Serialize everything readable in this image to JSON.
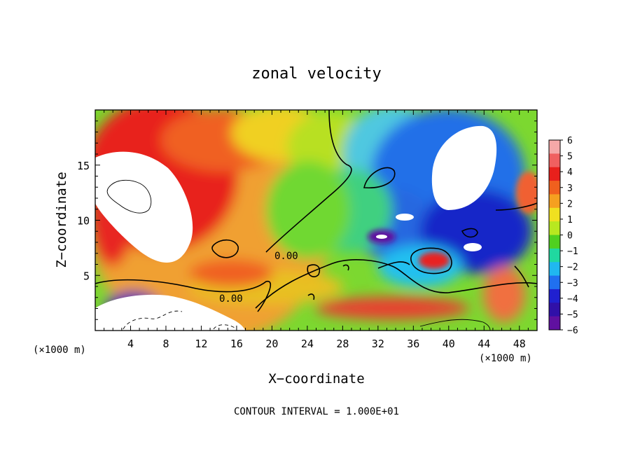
{
  "chart_data": {
    "type": "heatmap",
    "title": "zonal velocity",
    "xlabel": "X−coordinate",
    "ylabel": "Z−coordinate",
    "x_unit_left": "(×1000 m)",
    "x_unit_right": "(×1000 m)",
    "xlim": [
      0,
      50
    ],
    "ylim": [
      0,
      20
    ],
    "x_ticks": [
      4,
      8,
      12,
      16,
      20,
      24,
      28,
      32,
      36,
      40,
      44,
      48
    ],
    "y_ticks": [
      5,
      10,
      15
    ],
    "colorbar": {
      "ticks": [
        "6",
        "5",
        "4",
        "3",
        "2",
        "1",
        "0",
        "−1",
        "−2",
        "−3",
        "−4",
        "−5",
        "−6"
      ],
      "range": [
        -6,
        6
      ],
      "colors": [
        "#f5a8a8",
        "#f06060",
        "#e8201c",
        "#f0601e",
        "#f5a020",
        "#f0e020",
        "#b8e820",
        "#50d020",
        "#20d8a0",
        "#20b8f0",
        "#2070f0",
        "#2020d0",
        "#3010a8",
        "#6010a0"
      ]
    },
    "contour_labels": [
      "0.00",
      "0.00"
    ],
    "contour_interval_text": "CONTOUR INTERVAL = 1.000E+01"
  }
}
